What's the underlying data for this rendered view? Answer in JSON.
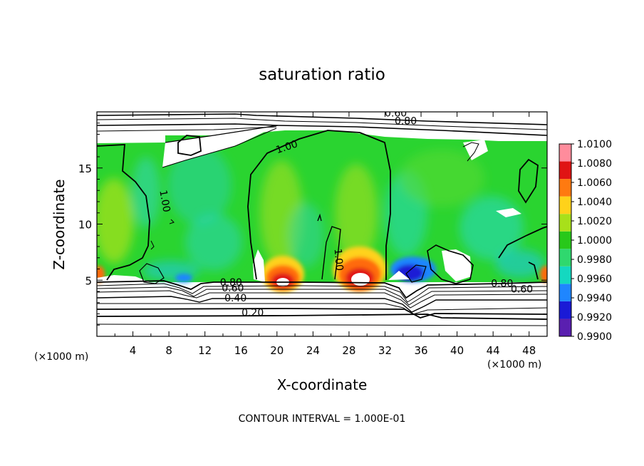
{
  "chart_data": {
    "type": "heatmap",
    "title": "saturation ratio",
    "xlabel": "X-coordinate",
    "ylabel": "Z-coordinate",
    "x_unit_left": "(×1000 m)",
    "x_unit_right": "(×1000 m)",
    "xlim": [
      0,
      50
    ],
    "ylim": [
      0,
      20
    ],
    "x_ticks": [
      4,
      8,
      12,
      16,
      20,
      24,
      28,
      32,
      36,
      40,
      44,
      48
    ],
    "y_ticks": [
      5,
      10,
      15
    ],
    "footer": "CONTOUR INTERVAL = 1.000E-01",
    "colorbar": {
      "levels": [
        0.99,
        0.992,
        0.994,
        0.996,
        0.998,
        1.0,
        1.002,
        1.004,
        1.006,
        1.008,
        1.01
      ],
      "labels": [
        "0.9900",
        "0.9920",
        "0.9940",
        "0.9960",
        "0.9980",
        "1.0000",
        "1.0020",
        "1.0040",
        "1.0060",
        "1.0080",
        "1.0100"
      ],
      "colors": [
        "#5a1fb0",
        "#1a1ad6",
        "#1f86ff",
        "#14d8c0",
        "#2fd86e",
        "#28c81a",
        "#a8e01a",
        "#ffd21a",
        "#ff7a10",
        "#e01414",
        "#ff8c9c"
      ]
    },
    "contour_labels": [
      {
        "text": "0.60",
        "x": 33.2,
        "z": 19.6
      },
      {
        "text": "0.80",
        "x": 34.3,
        "z": 18.9
      },
      {
        "text": "1.00",
        "x": 21.2,
        "z": 16.6
      },
      {
        "text": "1.00",
        "x": 7.2,
        "z": 12.0
      },
      {
        "text": "1.00",
        "x": 26.5,
        "z": 6.8
      },
      {
        "text": "0.80",
        "x": 14.9,
        "z": 4.5
      },
      {
        "text": "0.60",
        "x": 15.1,
        "z": 4.0
      },
      {
        "text": "0.40",
        "x": 15.4,
        "z": 3.1
      },
      {
        "text": "0.20",
        "x": 17.3,
        "z": 1.8
      },
      {
        "text": "0.80",
        "x": 45.0,
        "z": 4.4
      },
      {
        "text": "0.60",
        "x": 47.2,
        "z": 3.9
      }
    ]
  }
}
